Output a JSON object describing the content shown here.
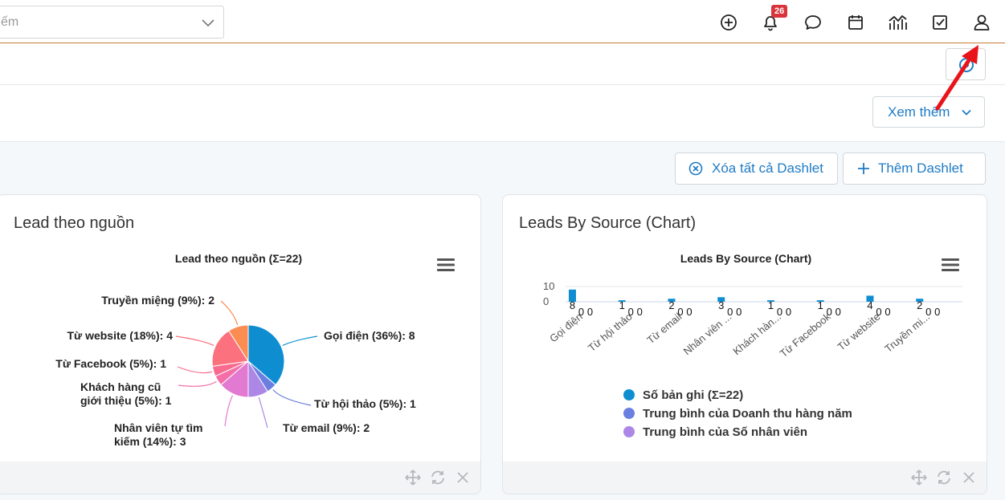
{
  "search": {
    "value": "ếm"
  },
  "topbar": {
    "notifications_count": "26"
  },
  "toolbar": {
    "see_more_label": "Xem thêm",
    "clear_dashlets_label": "Xóa tất cả Dashlet",
    "add_dashlet_label": "Thêm Dashlet"
  },
  "dashlets": [
    {
      "title": "Lead theo nguồn"
    },
    {
      "title": "Leads By Source (Chart)"
    }
  ],
  "chart_data": [
    {
      "type": "pie",
      "title": "Lead theo nguồn (Σ=22)",
      "slices": [
        {
          "label": "Gọi điện (36%): 8",
          "category": "Gọi điện",
          "value": 8,
          "color": "#0e8ed1"
        },
        {
          "label": "Từ hội thảo (5%): 1",
          "category": "Từ hội thảo",
          "value": 1,
          "color": "#6a7fe0"
        },
        {
          "label": "Từ email (9%): 2",
          "category": "Từ email",
          "value": 2,
          "color": "#ad87e6"
        },
        {
          "label": "Nhân viên tự tìm kiếm (14%): 3",
          "category": "Nhân viên tự tìm kiếm",
          "value": 3,
          "color": "#e27ad1"
        },
        {
          "label": "Khách hàng cũ giới thiệu (5%): 1",
          "category": "Khách hàng cũ giới thiệu",
          "value": 1,
          "color": "#f46fa8"
        },
        {
          "label": "Từ Facebook (5%): 1",
          "category": "Từ Facebook",
          "value": 1,
          "color": "#f86a8e"
        },
        {
          "label": "Từ website (18%): 4",
          "category": "Từ website",
          "value": 4,
          "color": "#fb717d"
        },
        {
          "label": "Truyền miệng (9%): 2",
          "category": "Truyền miệng",
          "value": 2,
          "color": "#fb8c52"
        }
      ]
    },
    {
      "type": "bar",
      "title": "Leads By Source (Chart)",
      "categories": [
        "Gọi điện",
        "Từ hội thảo",
        "Từ email",
        "Nhân viên ...",
        "Khách hàn...",
        "Từ Facebook",
        "Từ website",
        "Truyền mi..."
      ],
      "yticks": [
        "10",
        "0"
      ],
      "ylim": [
        0,
        10
      ],
      "series": [
        {
          "name": "Số bản ghi (Σ=22)",
          "values": [
            8,
            1,
            2,
            3,
            1,
            1,
            4,
            2
          ],
          "color": "#0e8ed1"
        },
        {
          "name": "Trung bình của Doanh thu hàng năm",
          "values": [
            0,
            0,
            0,
            0,
            0,
            0,
            0,
            0
          ],
          "color": "#6a7fe0"
        },
        {
          "name": "Trung bình của Số nhân viên",
          "values": [
            0,
            0,
            0,
            0,
            0,
            0,
            0,
            0
          ],
          "color": "#ad87e6"
        }
      ]
    }
  ]
}
